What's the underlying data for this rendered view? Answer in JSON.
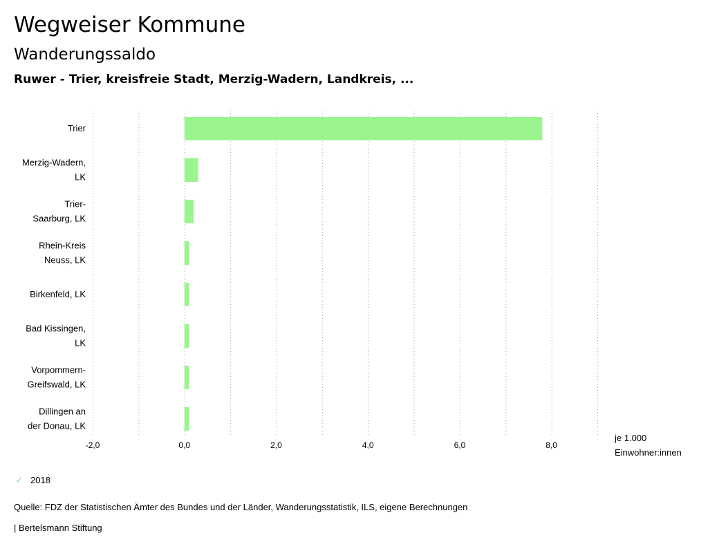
{
  "header": {
    "title": "Wegweiser Kommune",
    "subtitle": "Wanderungssaldo",
    "regions": "Ruwer - Trier, kreisfreie Stadt, Merzig-Wadern, Landkreis, ..."
  },
  "chart_data": {
    "type": "bar",
    "orientation": "horizontal",
    "categories": [
      [
        "Trier"
      ],
      [
        "Merzig-Wadern,",
        "LK"
      ],
      [
        "Trier-",
        "Saarburg, LK"
      ],
      [
        "Rhein-Kreis",
        "Neuss, LK"
      ],
      [
        "Birkenfeld, LK"
      ],
      [
        "Bad Kissingen,",
        "LK"
      ],
      [
        "Vorpommern-",
        "Greifswald, LK"
      ],
      [
        "Dillingen an",
        "der Donau, LK"
      ]
    ],
    "series": [
      {
        "name": "2018",
        "values": [
          7.8,
          0.3,
          0.2,
          0.1,
          0.1,
          0.1,
          0.1,
          0.1
        ]
      }
    ],
    "xlim": [
      -2.0,
      9.0
    ],
    "xticks": [
      -2.0,
      0.0,
      2.0,
      4.0,
      6.0,
      8.0
    ],
    "tick_labels": [
      "-2,0",
      "0,0",
      "2,0",
      "4,0",
      "6,0",
      "8,0"
    ],
    "xlabel": [
      "je 1.000",
      "Einwohner:innen"
    ],
    "grid": true,
    "bar_color": "#9af58f",
    "legend_position": "bottom-left"
  },
  "legend": {
    "label": "2018",
    "check": "✓"
  },
  "footer": {
    "source": "Quelle: FDZ der Statistischen Ämter des Bundes und der Länder, Wanderungsstatistik, ILS, eigene Berechnungen",
    "credit": "| Bertelsmann Stiftung"
  }
}
